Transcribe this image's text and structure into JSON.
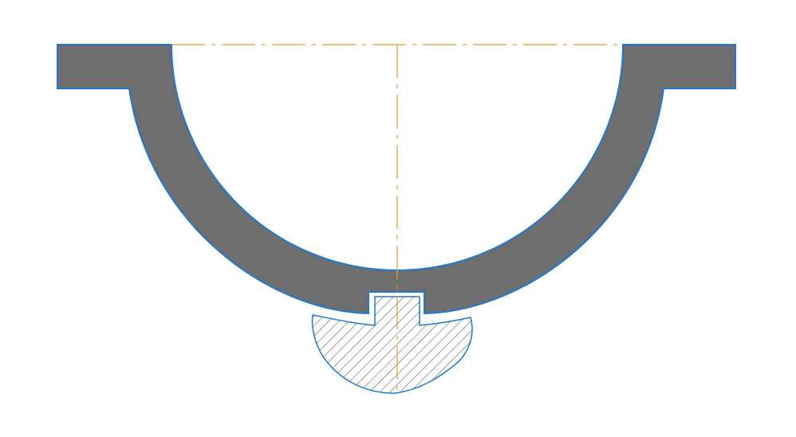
{
  "drawing": {
    "view": "cross-section",
    "colors": {
      "background": "#ffffff",
      "housing_fill": "#6e6e6e",
      "outline": "#1f78d1",
      "centerline": "#e39a2d",
      "hatch": "#444444"
    },
    "parts": [
      {
        "name": "bowl-housing",
        "style": "solid-gray-section"
      },
      {
        "name": "cut-section-part",
        "style": "diagonal-hatch"
      },
      {
        "name": "centerline",
        "style": "dash-dot"
      }
    ]
  }
}
